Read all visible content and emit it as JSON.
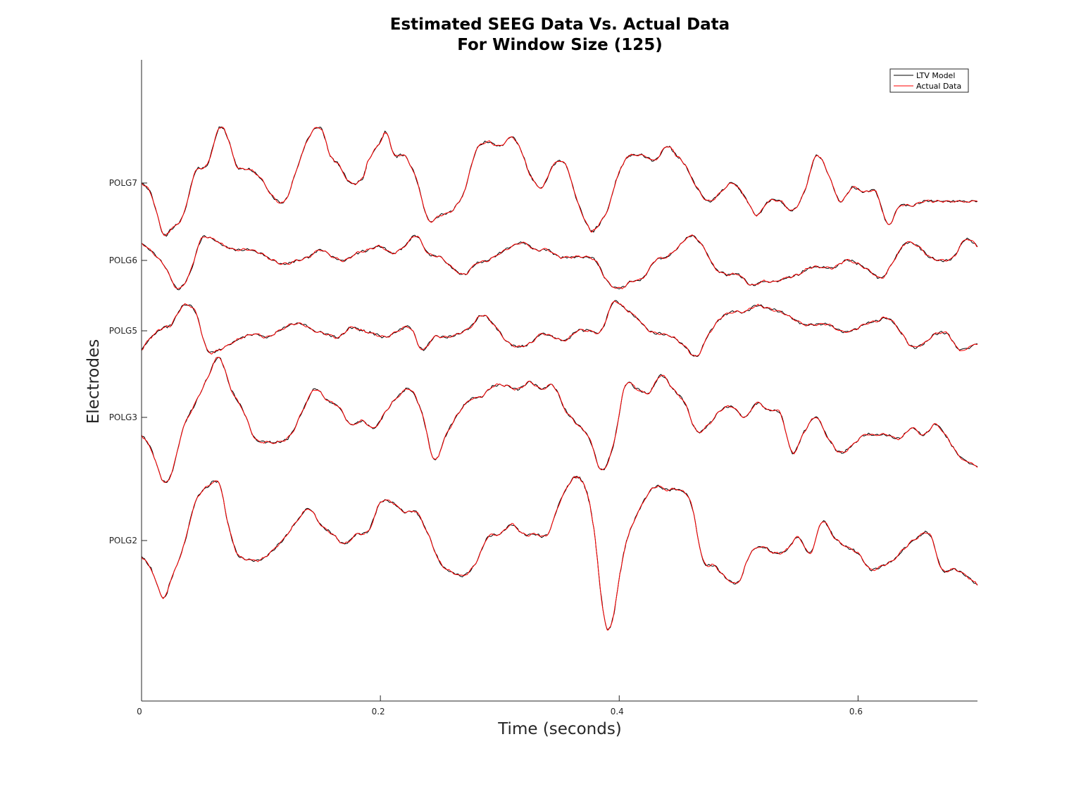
{
  "chart_data": {
    "type": "line",
    "title": [
      "Estimated SEEG Data Vs. Actual Data",
      "For Window Size (125)"
    ],
    "xlabel": "Time (seconds)",
    "ylabel": "Electrodes",
    "xlim": [
      0,
      0.7
    ],
    "xticks": [
      0,
      0.2,
      0.4,
      0.6
    ],
    "xtick_labels": [
      "0",
      "0.2",
      "0.4",
      "0.6"
    ],
    "ytick_labels": [
      "POLG2",
      "POLG3",
      "POLG5",
      "POLG6",
      "POLG7"
    ],
    "legend": {
      "placement": "top-right",
      "entries": [
        "LTV Model",
        "Actual Data"
      ]
    },
    "colors": {
      "LTV Model": "#000000",
      "Actual Data": "#ff0000"
    },
    "grid": false,
    "series": [
      {
        "name": "LTV Model"
      },
      {
        "name": "Actual Data"
      }
    ],
    "channels": [
      {
        "label": "POLG7",
        "t": [
          0,
          0.008,
          0.018,
          0.025,
          0.035,
          0.045,
          0.055,
          0.065,
          0.072,
          0.08,
          0.09,
          0.1,
          0.11,
          0.12,
          0.13,
          0.14,
          0.15,
          0.158,
          0.165,
          0.175,
          0.185,
          0.19,
          0.2,
          0.205,
          0.212,
          0.22,
          0.23,
          0.24,
          0.25,
          0.26,
          0.27,
          0.28,
          0.29,
          0.3,
          0.31,
          0.318,
          0.325,
          0.335,
          0.345,
          0.355,
          0.365,
          0.375,
          0.38,
          0.39,
          0.398,
          0.405,
          0.41,
          0.42,
          0.43,
          0.44,
          0.448,
          0.455,
          0.465,
          0.475,
          0.485,
          0.495,
          0.505,
          0.515,
          0.525,
          0.535,
          0.545,
          0.555,
          0.565,
          0.575,
          0.585,
          0.595,
          0.605,
          0.615,
          0.625,
          0.635,
          0.645,
          0.655,
          0.665,
          0.675,
          0.685,
          0.7
        ],
        "v": [
          0,
          -0.12,
          -0.55,
          -0.5,
          -0.35,
          0.12,
          0.2,
          0.6,
          0.5,
          0.18,
          0.15,
          0.05,
          -0.15,
          -0.2,
          0.15,
          0.5,
          0.6,
          0.3,
          0.2,
          0,
          0.05,
          0.25,
          0.45,
          0.55,
          0.3,
          0.3,
          0.05,
          -0.4,
          -0.35,
          -0.3,
          -0.1,
          0.35,
          0.45,
          0.4,
          0.5,
          0.35,
          0.1,
          -0.05,
          0.2,
          0.2,
          -0.2,
          -0.5,
          -0.5,
          -0.3,
          0.05,
          0.25,
          0.3,
          0.3,
          0.25,
          0.4,
          0.3,
          0.2,
          -0.05,
          -0.2,
          -0.1,
          0,
          -0.15,
          -0.35,
          -0.2,
          -0.2,
          -0.3,
          -0.1,
          0.3,
          0.1,
          -0.2,
          -0.05,
          -0.1,
          -0.1,
          -0.45,
          -0.25,
          -0.25,
          -0.2,
          -0.2,
          -0.2,
          -0.2,
          -0.2
        ]
      },
      {
        "label": "POLG6",
        "t": [
          0,
          0.01,
          0.02,
          0.03,
          0.04,
          0.05,
          0.06,
          0.07,
          0.08,
          0.09,
          0.1,
          0.11,
          0.12,
          0.13,
          0.14,
          0.15,
          0.16,
          0.17,
          0.18,
          0.19,
          0.2,
          0.21,
          0.22,
          0.23,
          0.24,
          0.25,
          0.26,
          0.27,
          0.28,
          0.29,
          0.3,
          0.31,
          0.32,
          0.33,
          0.34,
          0.35,
          0.36,
          0.37,
          0.38,
          0.39,
          0.4,
          0.41,
          0.42,
          0.43,
          0.44,
          0.45,
          0.46,
          0.47,
          0.48,
          0.49,
          0.5,
          0.51,
          0.52,
          0.53,
          0.54,
          0.55,
          0.56,
          0.57,
          0.58,
          0.59,
          0.6,
          0.61,
          0.62,
          0.63,
          0.64,
          0.65,
          0.66,
          0.67,
          0.68,
          0.69,
          0.7
        ],
        "v": [
          0.25,
          0.1,
          -0.1,
          -0.4,
          -0.2,
          0.3,
          0.3,
          0.2,
          0.15,
          0.15,
          0.1,
          0,
          -0.05,
          0,
          0.05,
          0.15,
          0.05,
          0,
          0.1,
          0.15,
          0.2,
          0.1,
          0.2,
          0.35,
          0.1,
          0.05,
          -0.1,
          -0.2,
          -0.05,
          0,
          0.1,
          0.2,
          0.25,
          0.15,
          0.15,
          0.05,
          0.05,
          0.05,
          0,
          -0.3,
          -0.4,
          -0.3,
          -0.25,
          0,
          0.05,
          0.2,
          0.35,
          0.2,
          -0.1,
          -0.2,
          -0.2,
          -0.35,
          -0.3,
          -0.3,
          -0.25,
          -0.2,
          -0.1,
          -0.1,
          -0.1,
          0,
          -0.05,
          -0.15,
          -0.25,
          0,
          0.25,
          0.2,
          0.05,
          0,
          0.05,
          0.3,
          0.2
        ]
      },
      {
        "label": "POLG5",
        "t": [
          0,
          0.008,
          0.018,
          0.025,
          0.035,
          0.045,
          0.055,
          0.065,
          0.075,
          0.085,
          0.095,
          0.105,
          0.115,
          0.125,
          0.135,
          0.145,
          0.155,
          0.165,
          0.175,
          0.185,
          0.195,
          0.205,
          0.215,
          0.225,
          0.235,
          0.245,
          0.255,
          0.265,
          0.275,
          0.285,
          0.295,
          0.305,
          0.315,
          0.325,
          0.335,
          0.345,
          0.355,
          0.365,
          0.375,
          0.385,
          0.395,
          0.405,
          0.415,
          0.425,
          0.435,
          0.445,
          0.455,
          0.465,
          0.475,
          0.485,
          0.495,
          0.505,
          0.515,
          0.525,
          0.535,
          0.545,
          0.555,
          0.565,
          0.575,
          0.585,
          0.595,
          0.605,
          0.615,
          0.625,
          0.635,
          0.645,
          0.655,
          0.665,
          0.675,
          0.685,
          0.7
        ],
        "v": [
          -0.3,
          -0.1,
          0.05,
          0.1,
          0.4,
          0.3,
          -0.3,
          -0.3,
          -0.2,
          -0.1,
          -0.05,
          -0.1,
          0,
          0.1,
          0.1,
          0,
          -0.05,
          -0.1,
          0.05,
          0,
          -0.05,
          -0.1,
          0,
          0.05,
          -0.3,
          -0.1,
          -0.1,
          -0.05,
          0.05,
          0.25,
          0.1,
          -0.15,
          -0.25,
          -0.2,
          -0.05,
          -0.1,
          -0.15,
          0,
          0,
          0,
          0.45,
          0.35,
          0.2,
          0,
          -0.05,
          -0.1,
          -0.25,
          -0.4,
          -0.05,
          0.2,
          0.3,
          0.3,
          0.4,
          0.35,
          0.3,
          0.2,
          0.1,
          0.1,
          0.1,
          0,
          0,
          0.1,
          0.15,
          0.2,
          0,
          -0.25,
          -0.2,
          -0.05,
          -0.05,
          -0.3,
          -0.2
        ]
      },
      {
        "label": "POLG3",
        "t": [
          0,
          0.008,
          0.018,
          0.025,
          0.035,
          0.045,
          0.055,
          0.065,
          0.075,
          0.085,
          0.095,
          0.105,
          0.115,
          0.125,
          0.135,
          0.145,
          0.155,
          0.165,
          0.175,
          0.185,
          0.195,
          0.205,
          0.215,
          0.225,
          0.235,
          0.245,
          0.255,
          0.265,
          0.275,
          0.285,
          0.295,
          0.305,
          0.315,
          0.325,
          0.335,
          0.345,
          0.355,
          0.365,
          0.375,
          0.385,
          0.395,
          0.405,
          0.415,
          0.425,
          0.435,
          0.445,
          0.455,
          0.465,
          0.475,
          0.485,
          0.495,
          0.505,
          0.515,
          0.525,
          0.535,
          0.545,
          0.555,
          0.565,
          0.575,
          0.585,
          0.595,
          0.605,
          0.615,
          0.625,
          0.635,
          0.645,
          0.655,
          0.665,
          0.675,
          0.685,
          0.7
        ],
        "v": [
          -0.25,
          -0.45,
          -0.9,
          -0.8,
          -0.15,
          0.2,
          0.55,
          0.85,
          0.4,
          0.1,
          -0.3,
          -0.35,
          -0.35,
          -0.25,
          0.1,
          0.4,
          0.25,
          0.15,
          -0.1,
          -0.05,
          -0.15,
          0.1,
          0.3,
          0.4,
          0.05,
          -0.6,
          -0.25,
          0.05,
          0.25,
          0.3,
          0.45,
          0.45,
          0.4,
          0.5,
          0.4,
          0.45,
          0.1,
          -0.1,
          -0.3,
          -0.75,
          -0.4,
          0.45,
          0.4,
          0.35,
          0.6,
          0.4,
          0.2,
          -0.2,
          -0.1,
          0.1,
          0.15,
          0,
          0.2,
          0.1,
          0.05,
          -0.5,
          -0.2,
          0,
          -0.3,
          -0.5,
          -0.4,
          -0.25,
          -0.25,
          -0.25,
          -0.3,
          -0.15,
          -0.25,
          -0.1,
          -0.3,
          -0.55,
          -0.7
        ]
      },
      {
        "label": "POLG2",
        "t": [
          0,
          0.008,
          0.018,
          0.025,
          0.035,
          0.045,
          0.055,
          0.065,
          0.072,
          0.08,
          0.09,
          0.1,
          0.11,
          0.12,
          0.13,
          0.14,
          0.15,
          0.16,
          0.17,
          0.18,
          0.19,
          0.2,
          0.21,
          0.22,
          0.23,
          0.24,
          0.25,
          0.26,
          0.27,
          0.28,
          0.29,
          0.3,
          0.31,
          0.32,
          0.33,
          0.34,
          0.35,
          0.36,
          0.365,
          0.37,
          0.375,
          0.38,
          0.385,
          0.39,
          0.395,
          0.4,
          0.405,
          0.41,
          0.42,
          0.43,
          0.44,
          0.45,
          0.46,
          0.47,
          0.48,
          0.49,
          0.5,
          0.51,
          0.52,
          0.53,
          0.54,
          0.55,
          0.56,
          0.57,
          0.58,
          0.59,
          0.6,
          0.61,
          0.62,
          0.63,
          0.64,
          0.65,
          0.66,
          0.67,
          0.68,
          0.69,
          0.7
        ],
        "v": [
          -0.25,
          -0.45,
          -0.9,
          -0.6,
          -0.1,
          0.6,
          0.85,
          0.9,
          0.3,
          -0.2,
          -0.3,
          -0.3,
          -0.15,
          0.05,
          0.3,
          0.5,
          0.25,
          0.1,
          -0.05,
          0.1,
          0.15,
          0.6,
          0.6,
          0.45,
          0.45,
          0.1,
          -0.35,
          -0.5,
          -0.55,
          -0.35,
          0.05,
          0.1,
          0.25,
          0.1,
          0.1,
          0.1,
          0.6,
          0.95,
          1,
          0.9,
          0.6,
          0,
          -0.9,
          -1.4,
          -1.2,
          -0.6,
          -0.1,
          0.2,
          0.6,
          0.85,
          0.8,
          0.8,
          0.6,
          -0.3,
          -0.4,
          -0.6,
          -0.65,
          -0.2,
          -0.1,
          -0.2,
          -0.15,
          0.05,
          -0.2,
          0.3,
          0.05,
          -0.1,
          -0.2,
          -0.45,
          -0.4,
          -0.3,
          -0.1,
          0.05,
          0.1,
          -0.45,
          -0.45,
          -0.55,
          -0.7
        ]
      }
    ]
  }
}
